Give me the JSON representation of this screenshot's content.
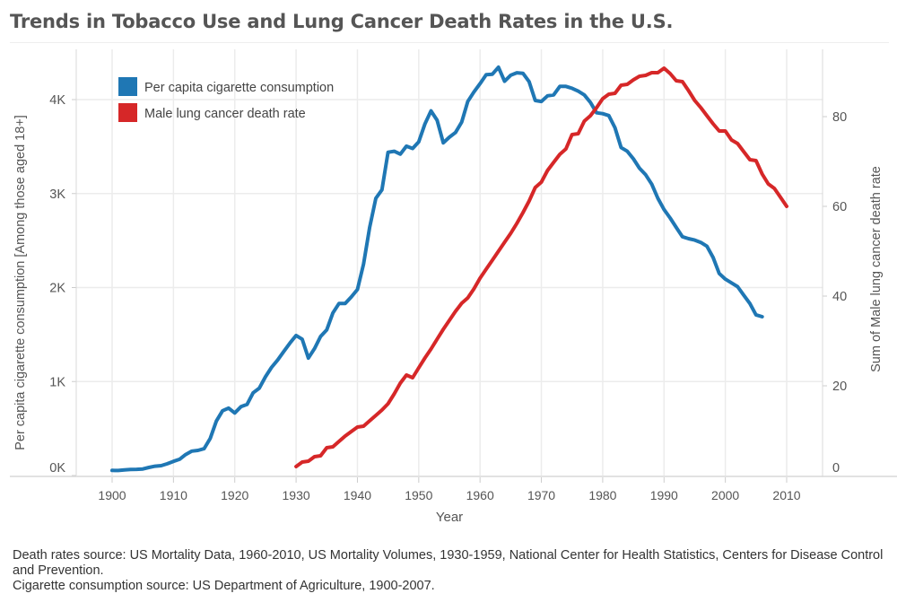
{
  "chart_data": {
    "type": "line",
    "title": "Trends in Tobacco Use and Lung Cancer Death Rates in the U.S.",
    "xlabel": "Year",
    "ylabel_left": "Per capita cigarette consumption [Among those aged 18+]",
    "ylabel_right": "Sum of Male lung cancer death rate",
    "xlim": [
      1895,
      2016
    ],
    "ylim_left": [
      0,
      4500
    ],
    "ylim_right": [
      0,
      90
    ],
    "x_ticks": [
      "1900",
      "1910",
      "1920",
      "1930",
      "1940",
      "1950",
      "1960",
      "1970",
      "1980",
      "1990",
      "2000",
      "2010"
    ],
    "x_tick_values": [
      1900,
      1910,
      1920,
      1930,
      1940,
      1950,
      1960,
      1970,
      1980,
      1990,
      2000,
      2010
    ],
    "y_left_ticks": [
      "0K",
      "1K",
      "2K",
      "3K",
      "4K"
    ],
    "y_left_tick_values": [
      0,
      1000,
      2000,
      3000,
      4000
    ],
    "y_right_ticks": [
      "0",
      "20",
      "40",
      "60",
      "80"
    ],
    "y_right_tick_values": [
      0,
      20,
      40,
      60,
      80
    ],
    "grid": true,
    "legend_position": "top-left",
    "series": [
      {
        "name": "Per capita cigarette consumption",
        "axis": "left",
        "color": "#1f77b4",
        "x": [
          1900,
          1901,
          1902,
          1903,
          1904,
          1905,
          1906,
          1907,
          1908,
          1909,
          1910,
          1911,
          1912,
          1913,
          1914,
          1915,
          1916,
          1917,
          1918,
          1919,
          1920,
          1921,
          1922,
          1923,
          1924,
          1925,
          1926,
          1927,
          1928,
          1929,
          1930,
          1931,
          1932,
          1933,
          1934,
          1935,
          1936,
          1937,
          1938,
          1939,
          1940,
          1941,
          1942,
          1943,
          1944,
          1945,
          1946,
          1947,
          1948,
          1949,
          1950,
          1951,
          1952,
          1953,
          1954,
          1955,
          1956,
          1957,
          1958,
          1959,
          1960,
          1961,
          1962,
          1963,
          1964,
          1965,
          1966,
          1967,
          1968,
          1969,
          1970,
          1971,
          1972,
          1973,
          1974,
          1975,
          1976,
          1977,
          1978,
          1979,
          1980,
          1981,
          1982,
          1983,
          1984,
          1985,
          1986,
          1987,
          1988,
          1989,
          1990,
          1991,
          1992,
          1993,
          1994,
          1995,
          1996,
          1997,
          1998,
          1999,
          2000,
          2001,
          2002,
          2003,
          2004,
          2005,
          2006
        ],
        "values": [
          54,
          53,
          60,
          64,
          66,
          70,
          86,
          99,
          105,
          125,
          151,
          173,
          223,
          260,
          267,
          285,
          395,
          579,
          689,
          717,
          665,
          732,
          756,
          880,
          930,
          1050,
          1150,
          1230,
          1320,
          1410,
          1490,
          1450,
          1250,
          1350,
          1480,
          1550,
          1730,
          1830,
          1830,
          1900,
          1980,
          2250,
          2640,
          2950,
          3040,
          3440,
          3450,
          3420,
          3505,
          3480,
          3550,
          3740,
          3880,
          3780,
          3540,
          3600,
          3650,
          3760,
          3980,
          4080,
          4170,
          4265,
          4270,
          4345,
          4195,
          4260,
          4285,
          4280,
          4190,
          3990,
          3980,
          4040,
          4050,
          4140,
          4140,
          4120,
          4090,
          4050,
          3970,
          3860,
          3850,
          3830,
          3700,
          3490,
          3450,
          3370,
          3270,
          3200,
          3100,
          2950,
          2830,
          2740,
          2640,
          2540,
          2520,
          2505,
          2480,
          2440,
          2320,
          2150,
          2090,
          2050,
          2010,
          1920,
          1830,
          1710,
          1690
        ]
      },
      {
        "name": "Male lung cancer death rate",
        "axis": "right",
        "color": "#d62728",
        "x": [
          1930,
          1931,
          1932,
          1933,
          1934,
          1935,
          1936,
          1937,
          1938,
          1939,
          1940,
          1941,
          1942,
          1943,
          1944,
          1945,
          1946,
          1947,
          1948,
          1949,
          1950,
          1951,
          1952,
          1953,
          1954,
          1955,
          1956,
          1957,
          1958,
          1959,
          1960,
          1961,
          1962,
          1963,
          1964,
          1965,
          1966,
          1967,
          1968,
          1969,
          1970,
          1971,
          1972,
          1973,
          1974,
          1975,
          1976,
          1977,
          1978,
          1979,
          1980,
          1981,
          1982,
          1983,
          1984,
          1985,
          1986,
          1987,
          1988,
          1989,
          1990,
          1991,
          1992,
          1993,
          1994,
          1995,
          1996,
          1997,
          1998,
          1999,
          2000,
          2001,
          2002,
          2003,
          2004,
          2005,
          2006,
          2007,
          2008,
          2009,
          2010
        ],
        "values": [
          2.0,
          3.0,
          3.2,
          4.2,
          4.4,
          6.2,
          6.4,
          7.6,
          8.8,
          9.8,
          10.8,
          11.0,
          12.2,
          13.4,
          14.6,
          16.0,
          18.2,
          20.6,
          22.4,
          21.8,
          24.0,
          26.2,
          28.2,
          30.4,
          32.6,
          34.6,
          36.6,
          38.4,
          39.6,
          41.6,
          44.0,
          46.0,
          48.0,
          50.0,
          52.0,
          54.0,
          56.2,
          58.6,
          61.2,
          64.2,
          65.4,
          68.0,
          69.8,
          71.6,
          72.8,
          76.0,
          76.2,
          79.0,
          80.2,
          82.0,
          84.0,
          85.0,
          85.2,
          87.0,
          87.2,
          88.2,
          89.0,
          89.2,
          89.8,
          89.8,
          90.8,
          89.6,
          88.0,
          87.8,
          85.8,
          83.6,
          82.0,
          80.2,
          78.4,
          76.8,
          76.8,
          74.8,
          74.0,
          72.2,
          70.4,
          70.2,
          67.2,
          65.0,
          64.0,
          62.0,
          60.0
        ]
      }
    ]
  },
  "footer": {
    "line1": "Death rates source: US Mortality Data, 1960-2010, US Mortality Volumes, 1930-1959, National Center for Health Statistics, Centers for Disease Control and Prevention.",
    "line2": "Cigarette consumption source: US Department of Agriculture, 1900-2007."
  }
}
